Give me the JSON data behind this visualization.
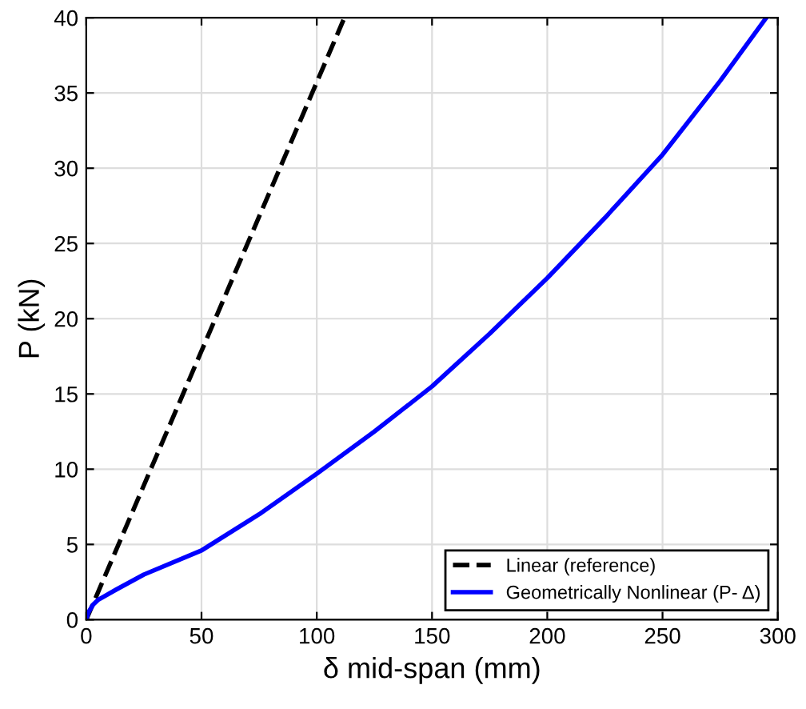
{
  "chart_data": {
    "type": "line",
    "xlabel": "δ mid-span (mm)",
    "ylabel": "P (kN)",
    "xlim": [
      0,
      300
    ],
    "ylim": [
      0,
      40
    ],
    "xticks": [
      0,
      50,
      100,
      150,
      200,
      250,
      300
    ],
    "yticks": [
      0,
      5,
      10,
      15,
      20,
      25,
      30,
      35,
      40
    ],
    "grid": true,
    "legend": "bottom right",
    "series": [
      {
        "name": "Linear (reference)",
        "color": "#000000",
        "line_style": "dashed",
        "x": [
          0,
          112
        ],
        "values": [
          0,
          40
        ]
      },
      {
        "name": "Geometrically Nonlinear (P- Δ)",
        "color": "#0000ff",
        "line_style": "solid",
        "x": [
          0,
          1,
          3,
          5,
          13,
          25,
          50,
          75,
          100,
          125,
          150,
          175,
          200,
          225,
          250,
          275,
          295
        ],
        "values": [
          0,
          0.5,
          1.0,
          1.3,
          2.0,
          3.0,
          4.6,
          7.0,
          9.7,
          12.5,
          15.5,
          19.0,
          22.7,
          26.7,
          30.9,
          35.8,
          40
        ]
      }
    ]
  }
}
